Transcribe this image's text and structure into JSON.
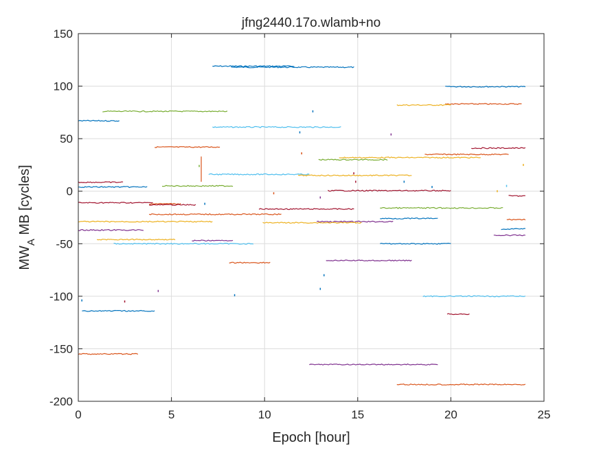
{
  "chart_data": {
    "type": "line",
    "title": "jfng2440.17o.wlamb+no",
    "xlabel": "Epoch [hour]",
    "ylabel_main": "MW",
    "ylabel_sub": "A",
    "ylabel_rest": " MB [cycles]",
    "xlim": [
      0,
      25
    ],
    "ylim": [
      -200,
      150
    ],
    "xticks": [
      0,
      5,
      10,
      15,
      20,
      25
    ],
    "yticks": [
      -200,
      -150,
      -100,
      -50,
      0,
      50,
      100,
      150
    ],
    "xtick_labels": [
      "0",
      "5",
      "10",
      "15",
      "20",
      "25"
    ],
    "ytick_labels": [
      "-200",
      "-150",
      "-100",
      "-50",
      "0",
      "50",
      "100",
      "150"
    ],
    "grid": true,
    "colors": [
      "#0072BD",
      "#D95319",
      "#EDB120",
      "#7E2F8E",
      "#77AC30",
      "#4DBEEE",
      "#A2142F"
    ],
    "segments": [
      {
        "x": [
          7.2,
          11.6
        ],
        "y": [
          119,
          119
        ],
        "c": 0
      },
      {
        "x": [
          8.2,
          14.8
        ],
        "y": [
          118,
          118
        ],
        "c": 0
      },
      {
        "x": [
          19.7,
          24.0
        ],
        "y": [
          99.5,
          99.5
        ],
        "c": 0
      },
      {
        "x": [
          19.7,
          23.8
        ],
        "y": [
          83,
          83
        ],
        "c": 1
      },
      {
        "x": [
          17.1,
          20.0
        ],
        "y": [
          82,
          82
        ],
        "c": 2
      },
      {
        "x": [
          1.3,
          8.0
        ],
        "y": [
          76,
          76
        ],
        "c": 4
      },
      {
        "x": [
          0.0,
          2.2
        ],
        "y": [
          67,
          67
        ],
        "c": 0
      },
      {
        "x": [
          7.2,
          14.1
        ],
        "y": [
          61,
          61
        ],
        "c": 5
      },
      {
        "x": [
          4.1,
          7.6
        ],
        "y": [
          42,
          42
        ],
        "c": 1
      },
      {
        "x": [
          21.1,
          24.0
        ],
        "y": [
          41,
          41
        ],
        "c": 6
      },
      {
        "x": [
          18.6,
          23.1
        ],
        "y": [
          35,
          35
        ],
        "c": 1
      },
      {
        "x": [
          14.0,
          21.6
        ],
        "y": [
          32,
          32
        ],
        "c": 2
      },
      {
        "x": [
          12.9,
          16.6
        ],
        "y": [
          30,
          30
        ],
        "c": 4
      },
      {
        "x": [
          7.0,
          12.4
        ],
        "y": [
          16,
          16
        ],
        "c": 5
      },
      {
        "x": [
          11.8,
          17.9
        ],
        "y": [
          15,
          15
        ],
        "c": 2
      },
      {
        "x": [
          0.0,
          2.4
        ],
        "y": [
          8.5,
          8.5
        ],
        "c": 6
      },
      {
        "x": [
          4.5,
          8.3
        ],
        "y": [
          5,
          5
        ],
        "c": 4
      },
      {
        "x": [
          0.0,
          3.7
        ],
        "y": [
          4,
          4
        ],
        "c": 0
      },
      {
        "x": [
          13.4,
          20.0
        ],
        "y": [
          0.5,
          0.5
        ],
        "c": 6
      },
      {
        "x": [
          23.1,
          24.0
        ],
        "y": [
          -4.5,
          -4.5
        ],
        "c": 6
      },
      {
        "x": [
          0.0,
          4.0
        ],
        "y": [
          -11,
          -11
        ],
        "c": 6
      },
      {
        "x": [
          3.8,
          5.5
        ],
        "y": [
          -12,
          -12
        ],
        "c": 1
      },
      {
        "x": [
          3.8,
          6.3
        ],
        "y": [
          -13,
          -13
        ],
        "c": 6
      },
      {
        "x": [
          16.2,
          22.8
        ],
        "y": [
          -16,
          -16
        ],
        "c": 4
      },
      {
        "x": [
          9.7,
          14.8
        ],
        "y": [
          -17,
          -17
        ],
        "c": 6
      },
      {
        "x": [
          3.8,
          10.9
        ],
        "y": [
          -22,
          -22
        ],
        "c": 1
      },
      {
        "x": [
          16.2,
          19.3
        ],
        "y": [
          -26,
          -26
        ],
        "c": 0
      },
      {
        "x": [
          23.0,
          24.0
        ],
        "y": [
          -27,
          -27
        ],
        "c": 1
      },
      {
        "x": [
          0.0,
          7.2
        ],
        "y": [
          -29,
          -29
        ],
        "c": 2
      },
      {
        "x": [
          12.8,
          16.9
        ],
        "y": [
          -29,
          -29
        ],
        "c": 3
      },
      {
        "x": [
          9.9,
          15.2
        ],
        "y": [
          -30,
          -30
        ],
        "c": 2
      },
      {
        "x": [
          22.7,
          24.0
        ],
        "y": [
          -36,
          -36
        ],
        "c": 0
      },
      {
        "x": [
          0.0,
          3.5
        ],
        "y": [
          -37,
          -37
        ],
        "c": 3
      },
      {
        "x": [
          22.3,
          24.0
        ],
        "y": [
          -42,
          -42
        ],
        "c": 3
      },
      {
        "x": [
          1.0,
          5.2
        ],
        "y": [
          -46,
          -46
        ],
        "c": 2
      },
      {
        "x": [
          6.1,
          8.3
        ],
        "y": [
          -47,
          -47
        ],
        "c": 3
      },
      {
        "x": [
          1.9,
          9.4
        ],
        "y": [
          -50,
          -50
        ],
        "c": 5
      },
      {
        "x": [
          16.2,
          20.0
        ],
        "y": [
          -50,
          -50
        ],
        "c": 0
      },
      {
        "x": [
          8.1,
          10.3
        ],
        "y": [
          -68,
          -68
        ],
        "c": 1
      },
      {
        "x": [
          13.3,
          17.9
        ],
        "y": [
          -66,
          -66
        ],
        "c": 3
      },
      {
        "x": [
          18.5,
          24.0
        ],
        "y": [
          -100,
          -100
        ],
        "c": 5
      },
      {
        "x": [
          0.2,
          4.1
        ],
        "y": [
          -114,
          -114
        ],
        "c": 0
      },
      {
        "x": [
          19.8,
          21.0
        ],
        "y": [
          -117,
          -117
        ],
        "c": 6
      },
      {
        "x": [
          0.0,
          3.2
        ],
        "y": [
          -155,
          -155
        ],
        "c": 1
      },
      {
        "x": [
          12.4,
          19.3
        ],
        "y": [
          -165,
          -165
        ],
        "c": 3
      },
      {
        "x": [
          17.1,
          24.0
        ],
        "y": [
          -184,
          -184
        ],
        "c": 1
      },
      {
        "x": [
          6.6,
          6.6
        ],
        "y": [
          33,
          9
        ],
        "c": 1
      }
    ],
    "points": [
      {
        "x": 0.2,
        "y": -104,
        "c": 0
      },
      {
        "x": 2.5,
        "y": -105,
        "c": 6
      },
      {
        "x": 4.3,
        "y": -95,
        "c": 3
      },
      {
        "x": 8.4,
        "y": -99,
        "c": 0
      },
      {
        "x": 6.5,
        "y": 24,
        "c": 4
      },
      {
        "x": 6.8,
        "y": -12,
        "c": 0
      },
      {
        "x": 10.5,
        "y": -2,
        "c": 1
      },
      {
        "x": 11.9,
        "y": 56,
        "c": 0
      },
      {
        "x": 12.0,
        "y": 36,
        "c": 1
      },
      {
        "x": 12.6,
        "y": 76,
        "c": 0
      },
      {
        "x": 13.0,
        "y": -6,
        "c": 3
      },
      {
        "x": 13.2,
        "y": -80,
        "c": 0
      },
      {
        "x": 13.0,
        "y": -93,
        "c": 0
      },
      {
        "x": 14.8,
        "y": 17,
        "c": 6
      },
      {
        "x": 14.9,
        "y": 9,
        "c": 6
      },
      {
        "x": 16.8,
        "y": 54,
        "c": 3
      },
      {
        "x": 17.5,
        "y": 9,
        "c": 0
      },
      {
        "x": 19.0,
        "y": 4,
        "c": 0
      },
      {
        "x": 22.5,
        "y": 0,
        "c": 2
      },
      {
        "x": 23.0,
        "y": 5,
        "c": 5
      },
      {
        "x": 23.9,
        "y": 25,
        "c": 2
      }
    ]
  }
}
